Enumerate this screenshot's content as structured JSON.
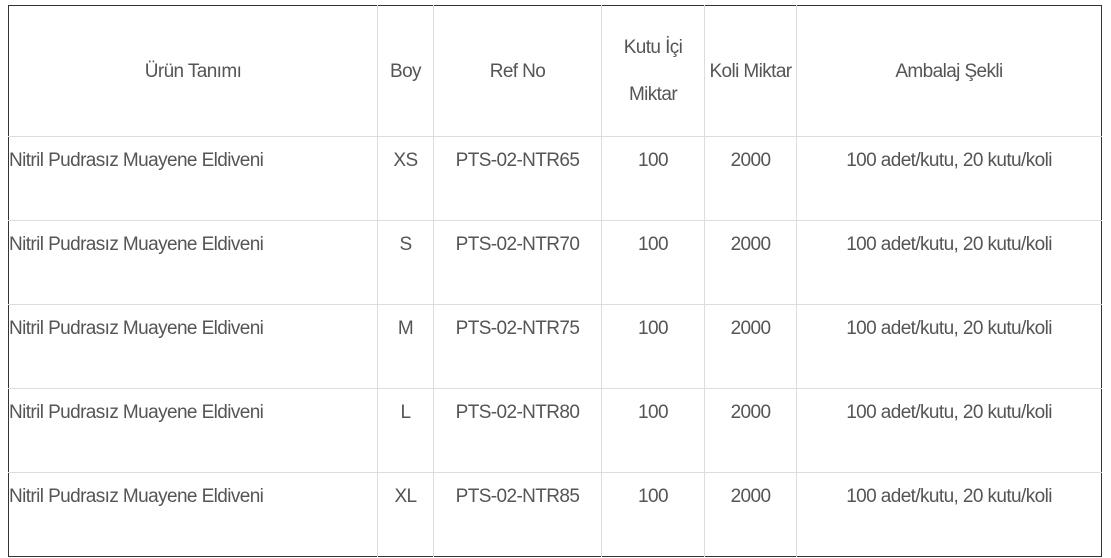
{
  "table": {
    "headers": [
      "Ürün Tanımı",
      "Boy",
      "Ref No",
      "Kutu İçi Miktar",
      "Koli Miktar",
      "Ambalaj Şekli"
    ],
    "rows": [
      [
        "Nitril Pudrasız Muayene Eldiveni",
        "XS",
        "PTS-02-NTR65",
        "100",
        "2000",
        "100 adet/kutu, 20 kutu/koli"
      ],
      [
        "Nitril Pudrasız Muayene Eldiveni",
        "S",
        "PTS-02-NTR70",
        "100",
        "2000",
        "100 adet/kutu, 20 kutu/koli"
      ],
      [
        "Nitril Pudrasız Muayene Eldiveni",
        "M",
        "PTS-02-NTR75",
        "100",
        "2000",
        "100 adet/kutu, 20 kutu/koli"
      ],
      [
        "Nitril Pudrasız Muayene Eldiveni",
        "L",
        "PTS-02-NTR80",
        "100",
        "2000",
        "100 adet/kutu, 20 kutu/koli"
      ],
      [
        "Nitril Pudrasız Muayene Eldiveni",
        "XL",
        "PTS-02-NTR85",
        "100",
        "2000",
        "100 adet/kutu, 20 kutu/koli"
      ]
    ]
  }
}
